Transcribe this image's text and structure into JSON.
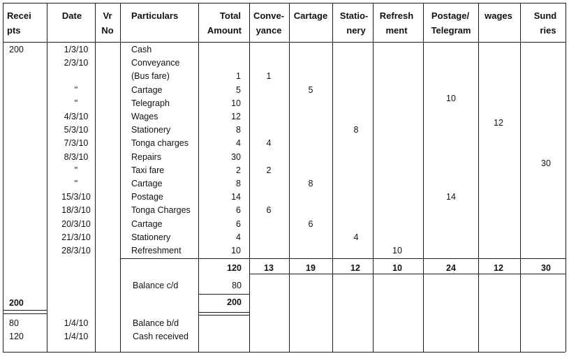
{
  "headers": {
    "receipts": [
      "Recei",
      "pts"
    ],
    "date": "Date",
    "vr_no": [
      "Vr",
      "No"
    ],
    "particulars": "Particulars",
    "total_amount": [
      "Total",
      "Amount"
    ],
    "conveyance": [
      "Conve-",
      "yance"
    ],
    "cartage": "Cartage",
    "stationery": [
      "Statio-",
      "nery"
    ],
    "refreshment": [
      "Refresh",
      "ment"
    ],
    "postage": [
      "Postage/",
      "Telegram"
    ],
    "wages": "wages",
    "sundries": [
      "Sund",
      "ries"
    ]
  },
  "rows": [
    {
      "receipt": "200",
      "date": "1/3/10",
      "particulars": "Cash",
      "total": "",
      "conveyance": "",
      "cartage": "",
      "stationery": "",
      "refreshment": "",
      "postage": "",
      "wages": "",
      "sundries": ""
    },
    {
      "receipt": "",
      "date": "2/3/10",
      "particulars": "Conveyance",
      "total": "",
      "conveyance": "",
      "cartage": "",
      "stationery": "",
      "refreshment": "",
      "postage": "",
      "wages": "",
      "sundries": ""
    },
    {
      "receipt": "",
      "date": "",
      "particulars": "(Bus fare)",
      "total": "1",
      "conveyance": "1",
      "cartage": "",
      "stationery": "",
      "refreshment": "",
      "postage": "",
      "wages": "",
      "sundries": ""
    },
    {
      "receipt": "",
      "date": "\"",
      "particulars": "Cartage",
      "total": "5",
      "conveyance": "",
      "cartage": "5",
      "stationery": "",
      "refreshment": "",
      "postage": "",
      "wages": "",
      "sundries": ""
    },
    {
      "receipt": "",
      "date": "\"",
      "particulars": "Telegraph",
      "total": "10",
      "conveyance": "",
      "cartage": "",
      "stationery": "",
      "refreshment": "",
      "postage": "10",
      "wages": "",
      "sundries": ""
    },
    {
      "receipt": "",
      "date": "4/3/10",
      "particulars": "Wages",
      "total": "12",
      "conveyance": "",
      "cartage": "",
      "stationery": "",
      "refreshment": "",
      "postage": "",
      "wages": "12",
      "sundries": ""
    },
    {
      "receipt": "",
      "date": "5/3/10",
      "particulars": "Stationery",
      "total": "8",
      "conveyance": "",
      "cartage": "",
      "stationery": "8",
      "refreshment": "",
      "postage": "",
      "wages": "",
      "sundries": ""
    },
    {
      "receipt": "",
      "date": "7/3/10",
      "particulars": "Tonga charges",
      "total": "4",
      "conveyance": "4",
      "cartage": "",
      "stationery": "",
      "refreshment": "",
      "postage": "",
      "wages": "",
      "sundries": ""
    },
    {
      "receipt": "",
      "date": "8/3/10",
      "particulars": "Repairs",
      "total": "30",
      "conveyance": "",
      "cartage": "",
      "stationery": "",
      "refreshment": "",
      "postage": "",
      "wages": "",
      "sundries": "30"
    },
    {
      "receipt": "",
      "date": "\"",
      "particulars": "Taxi fare",
      "total": "2",
      "conveyance": "2",
      "cartage": "",
      "stationery": "",
      "refreshment": "",
      "postage": "",
      "wages": "",
      "sundries": ""
    },
    {
      "receipt": "",
      "date": "\"",
      "particulars": "Cartage",
      "total": "8",
      "conveyance": "",
      "cartage": "8",
      "stationery": "",
      "refreshment": "",
      "postage": "",
      "wages": "",
      "sundries": ""
    },
    {
      "receipt": "",
      "date": "15/3/10",
      "particulars": "Postage",
      "total": "14",
      "conveyance": "",
      "cartage": "",
      "stationery": "",
      "refreshment": "",
      "postage": "14",
      "wages": "",
      "sundries": ""
    },
    {
      "receipt": "",
      "date": "18/3/10",
      "particulars": "Tonga Charges",
      "total": "6",
      "conveyance": "6",
      "cartage": "",
      "stationery": "",
      "refreshment": "",
      "postage": "",
      "wages": "",
      "sundries": ""
    },
    {
      "receipt": "",
      "date": "20/3/10",
      "particulars": "Cartage",
      "total": "6",
      "conveyance": "",
      "cartage": "6",
      "stationery": "",
      "refreshment": "",
      "postage": "",
      "wages": "",
      "sundries": ""
    },
    {
      "receipt": "",
      "date": "21/3/10",
      "particulars": "Stationery",
      "total": "4",
      "conveyance": "",
      "cartage": "",
      "stationery": "4",
      "refreshment": "",
      "postage": "",
      "wages": "",
      "sundries": ""
    },
    {
      "receipt": "",
      "date": "28/3/10",
      "particulars": "Refreshment",
      "total": "10",
      "conveyance": "",
      "cartage": "",
      "stationery": "",
      "refreshment": "10",
      "postage": "",
      "wages": "",
      "sundries": ""
    }
  ],
  "totals": {
    "total": "120",
    "conveyance": "13",
    "cartage": "19",
    "stationery": "12",
    "refreshment": "10",
    "postage": "24",
    "wages": "12",
    "sundries": "30"
  },
  "balance_cd": {
    "particulars": "Balance c/d",
    "total": "80"
  },
  "grand_total": {
    "receipt": "200",
    "total": "200"
  },
  "after_rows": [
    {
      "receipt": "80",
      "date": "1/4/10",
      "particulars": "Balance b/d"
    },
    {
      "receipt": "120",
      "date": "1/4/10",
      "particulars": "Cash received"
    }
  ]
}
